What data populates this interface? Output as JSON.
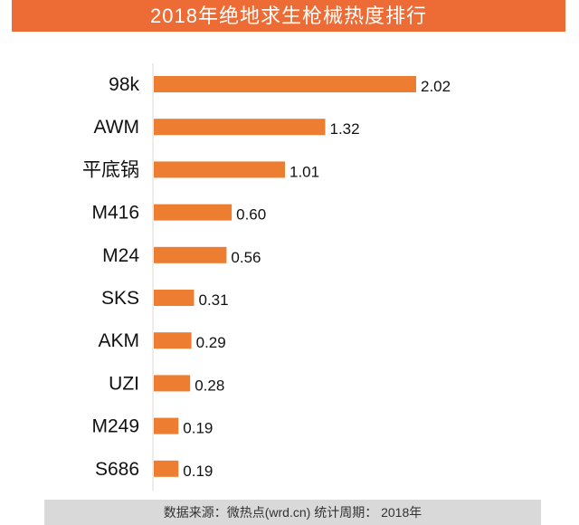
{
  "chart_data": {
    "type": "bar",
    "orientation": "horizontal",
    "title": "2018年绝地求生枪械热度排行",
    "categories": [
      "98k",
      "AWM",
      "平底锅",
      "M416",
      "M24",
      "SKS",
      "AKM",
      "UZI",
      "M249",
      "S686"
    ],
    "values": [
      2.02,
      1.32,
      1.01,
      0.6,
      0.56,
      0.31,
      0.29,
      0.28,
      0.19,
      0.19
    ],
    "value_labels": [
      "2.02",
      "1.32",
      "1.01",
      "0.60",
      "0.56",
      "0.31",
      "0.29",
      "0.28",
      "0.19",
      "0.19"
    ],
    "xlim": [
      0,
      2.02
    ],
    "grid": false,
    "bar_color": "#ED7D31",
    "title_bg": "#ED6C35"
  },
  "footer": "数据来源：微热点(wrd.cn)  统计周期：  2018年"
}
